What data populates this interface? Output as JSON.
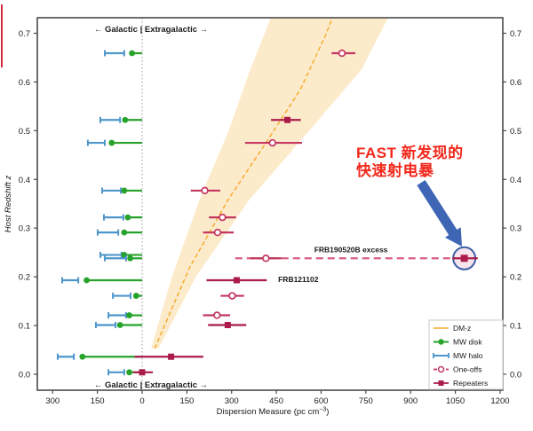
{
  "page": {
    "background": "#ffffff"
  },
  "decor": {
    "slide_edge_color": "#cf2b3a"
  },
  "annotations": {
    "fast_line1": "FAST 新发现的",
    "fast_line2": "快速射电暴",
    "fast_color": "#f2281c",
    "arrow_color": "#3e66b5"
  },
  "chart_data": {
    "type": "scatter",
    "title": "",
    "xlabel": "Dispersion Measure (pc cm⁻³)",
    "xlabel_parts": {
      "pre": "Dispersion Measure (pc cm",
      "sup": "−3",
      "post": ")"
    },
    "ylabel": "Host Redshift z",
    "region_label_top": "← Galactic | Extragalactic →",
    "region_label_bottom": "← Galactic | Extragalactic →",
    "xlim": [
      -351,
      1209
    ],
    "ylim": [
      -0.033,
      0.732
    ],
    "grid": false,
    "x_ticks": [
      {
        "value": -300,
        "label": "300"
      },
      {
        "value": -150,
        "label": "150"
      },
      {
        "value": 0,
        "label": "0"
      },
      {
        "value": 150,
        "label": "150"
      },
      {
        "value": 300,
        "label": "300"
      },
      {
        "value": 450,
        "label": "450"
      },
      {
        "value": 600,
        "label": "600"
      },
      {
        "value": 750,
        "label": "750"
      },
      {
        "value": 900,
        "label": "900"
      },
      {
        "value": 1050,
        "label": "1050"
      },
      {
        "value": 1200,
        "label": "1200"
      }
    ],
    "y_ticks": [
      {
        "value": 0.0,
        "label": "0.0"
      },
      {
        "value": 0.1,
        "label": "0.1"
      },
      {
        "value": 0.2,
        "label": "0.2"
      },
      {
        "value": 0.3,
        "label": "0.3"
      },
      {
        "value": 0.4,
        "label": "0.4"
      },
      {
        "value": 0.5,
        "label": "0.5"
      },
      {
        "value": 0.6,
        "label": "0.6"
      },
      {
        "value": 0.7,
        "label": "0.7"
      }
    ],
    "dm_z_relation": {
      "legend_label": "DM-z",
      "line": [
        [
          42,
          0.053
        ],
        [
          160,
          0.22
        ],
        [
          288,
          0.358
        ],
        [
          417,
          0.477
        ],
        [
          530,
          0.584
        ],
        [
          615,
          0.696
        ],
        [
          638,
          0.732
        ]
      ],
      "band_left": [
        [
          30,
          0.053
        ],
        [
          100,
          0.2
        ],
        [
          192,
          0.358
        ],
        [
          290,
          0.5
        ],
        [
          362,
          0.625
        ],
        [
          432,
          0.732
        ]
      ],
      "band_right": [
        [
          55,
          0.053
        ],
        [
          180,
          0.2
        ],
        [
          359,
          0.358
        ],
        [
          560,
          0.5
        ],
        [
          735,
          0.625
        ],
        [
          825,
          0.732
        ]
      ]
    },
    "galactic_rows": [
      {
        "z": 0.659,
        "disk_dm": 34,
        "halo_dm": [
          60,
          125
        ]
      },
      {
        "z": 0.522,
        "disk_dm": 57,
        "halo_dm": [
          74,
          140
        ]
      },
      {
        "z": 0.475,
        "disk_dm": 102,
        "halo_dm": [
          125,
          182
        ]
      },
      {
        "z": 0.377,
        "disk_dm": 60,
        "halo_dm": [
          71,
          134
        ]
      },
      {
        "z": 0.322,
        "disk_dm": 48,
        "halo_dm": [
          63,
          128
        ]
      },
      {
        "z": 0.291,
        "disk_dm": 60,
        "halo_dm": [
          80,
          149
        ]
      },
      {
        "z": 0.245,
        "disk_dm": 60,
        "halo_dm": [
          69,
          140
        ]
      },
      {
        "z": 0.238,
        "disk_dm": 40,
        "halo_dm": [
          54,
          125
        ]
      },
      {
        "z": 0.193,
        "disk_dm": 186,
        "halo_dm": [
          214,
          268
        ]
      },
      {
        "z": 0.161,
        "disk_dm": 20,
        "halo_dm": [
          39,
          98
        ]
      },
      {
        "z": 0.121,
        "disk_dm": 43,
        "halo_dm": [
          54,
          113
        ]
      },
      {
        "z": 0.101,
        "disk_dm": 74,
        "halo_dm": [
          89,
          155
        ]
      },
      {
        "z": 0.036,
        "disk_dm": 200,
        "halo_dm": [
          229,
          283
        ]
      },
      {
        "z": 0.004,
        "disk_dm": 43,
        "halo_dm": [
          60,
          113
        ]
      }
    ],
    "frb_points": [
      {
        "z": 0.659,
        "dm": 670,
        "err": [
          635,
          715
        ],
        "type": "one-off"
      },
      {
        "z": 0.522,
        "dm": 487,
        "err": [
          432,
          532
        ],
        "type": "repeater"
      },
      {
        "z": 0.475,
        "dm": 437,
        "err": [
          345,
          536
        ],
        "type": "one-off"
      },
      {
        "z": 0.377,
        "dm": 210,
        "err": [
          163,
          262
        ],
        "type": "one-off"
      },
      {
        "z": 0.322,
        "dm": 269,
        "err": [
          224,
          315
        ],
        "type": "one-off"
      },
      {
        "z": 0.291,
        "dm": 253,
        "err": [
          204,
          307
        ],
        "type": "one-off"
      },
      {
        "z": 0.238,
        "dm": 415,
        "err": [
          363,
          467
        ],
        "type": "one-off"
      },
      {
        "z": 0.193,
        "dm": 317,
        "err": [
          216,
          418
        ],
        "type": "repeater",
        "label": "FRB121102"
      },
      {
        "z": 0.161,
        "dm": 302,
        "err": [
          263,
          342
        ],
        "type": "one-off"
      },
      {
        "z": 0.121,
        "dm": 251,
        "err": [
          204,
          295
        ],
        "type": "one-off"
      },
      {
        "z": 0.101,
        "dm": 287,
        "err": [
          221,
          349
        ],
        "type": "repeater"
      },
      {
        "z": 0.036,
        "dm": 97,
        "err": [
          -25,
          205
        ],
        "type": "repeater"
      },
      {
        "z": 0.004,
        "dm": 0,
        "err": [
          -30,
          36
        ],
        "type": "repeater"
      }
    ],
    "frb190520b": {
      "label": "FRB190520B excess",
      "label_anchor": {
        "dm": 700,
        "z": 0.25
      },
      "z": 0.238,
      "dash_from_dm": 312,
      "measured": {
        "dm": 1080,
        "err": [
          1040,
          1125
        ],
        "type": "repeater"
      },
      "highlight_radius": 12.5
    },
    "frb121102_label_anchor": {
      "dm": 456,
      "z": 0.189
    },
    "legend": {
      "items": [
        {
          "label": "DM-z",
          "marker": "line"
        },
        {
          "label": "MW disk",
          "marker": "disk"
        },
        {
          "label": "MW halo",
          "marker": "halo"
        },
        {
          "label": "One-offs",
          "marker": "oneoff"
        },
        {
          "label": "Repeaters",
          "marker": "repeater"
        }
      ]
    },
    "colors": {
      "disk_green": "#27a32c",
      "halo_blue": "#4f96cb",
      "oneoff_crimson": "#c4375f",
      "repeater_crimson": "#ab1c4b",
      "dmz_orange": "#f7a828",
      "band_fill": "#fcebcb",
      "excess_dash": "#d95f82",
      "frb_label": "#d8486e",
      "highlight_fill": "#f8e4ec",
      "highlight_stroke": "#3d5fa8",
      "spine": "#4a4a4a",
      "zero_line": "#aaaaaa"
    }
  }
}
